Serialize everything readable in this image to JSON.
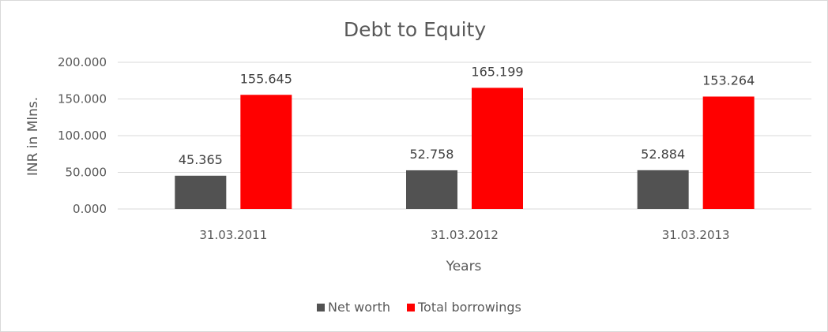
{
  "chart_data": {
    "type": "bar",
    "title": "Debt to Equity",
    "xlabel": "Years",
    "ylabel": "INR in Mlns.",
    "categories": [
      "31.03.2011",
      "31.03.2012",
      "31.03.2013"
    ],
    "ylim": [
      0,
      200
    ],
    "yticks": [
      "0.000",
      "50.000",
      "100.000",
      "150.000",
      "200.000"
    ],
    "grid": true,
    "legend_position": "bottom",
    "series": [
      {
        "name": "Net worth",
        "color": "#525252",
        "values": [
          45.365,
          52.758,
          52.884
        ],
        "labels": [
          "45.365",
          "52.758",
          "52.884"
        ]
      },
      {
        "name": "Total borrowings",
        "color": "#ff0000",
        "values": [
          155.645,
          165.199,
          153.264
        ],
        "labels": [
          "155.645",
          "165.199",
          "153.264"
        ]
      }
    ]
  }
}
